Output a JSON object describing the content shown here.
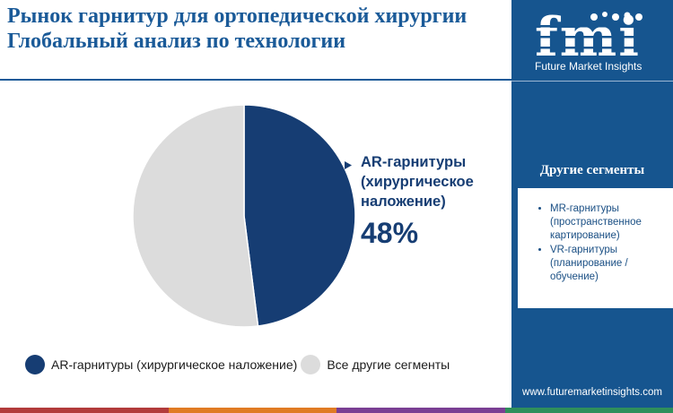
{
  "title": "Рынок гарнитур для ортопедической хирургии Глобальный анализ по технологии",
  "brand": {
    "logo_text": "fmi",
    "name": "Future Market Insights",
    "url": "www.futuremarketinsights.com"
  },
  "sidebar": {
    "heading": "Другие сегменты",
    "items": [
      "MR-гарнитуры (пространственное картирование)",
      "VR-гарнитуры (планирование / обучение)"
    ]
  },
  "callout": {
    "label": "AR-гарнитуры (хирургическое наложение)",
    "value": "48%"
  },
  "colors": {
    "primary": "#163d73",
    "secondary": "#dcdcdc",
    "sidebar": "#16558f",
    "title": "#1a5a98"
  },
  "bottom_bar_colors": [
    "#b23b3b",
    "#e07b24",
    "#7a3f93",
    "#2f8f5b"
  ],
  "chart_data": {
    "type": "pie",
    "title": "",
    "slices": [
      {
        "label": "AR-гарнитуры (хирургическое наложение)",
        "value": 48,
        "color": "#163d73"
      },
      {
        "label": "Все другие сегменты",
        "value": 52,
        "color": "#dcdcdc"
      }
    ],
    "legend_position": "bottom-left"
  }
}
